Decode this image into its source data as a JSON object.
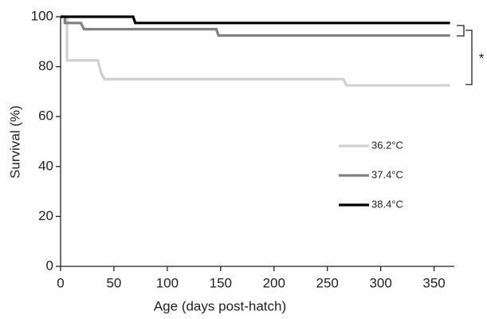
{
  "chart_data": {
    "type": "line",
    "xlabel": "Age (days post-hatch)",
    "ylabel": "Survival (%)",
    "xlim": [
      0,
      369
    ],
    "ylim": [
      0,
      100
    ],
    "xticks": [
      0,
      50,
      100,
      150,
      200,
      250,
      300,
      350
    ],
    "yticks": [
      0,
      20,
      40,
      60,
      80,
      100
    ],
    "grid": false,
    "legend": "right",
    "annotation": "*",
    "series": [
      {
        "name": "36.2°C",
        "color": "#d0d0d0",
        "x": [
          0,
          6,
          6,
          35,
          38,
          41,
          265,
          268,
          365
        ],
        "values": [
          100,
          100,
          82.5,
          82.5,
          77.5,
          75,
          75,
          72.5,
          72.5
        ]
      },
      {
        "name": "37.4°C",
        "color": "#808080",
        "x": [
          0,
          4,
          4,
          19,
          22,
          146,
          148,
          365
        ],
        "values": [
          100,
          100,
          97.5,
          97.5,
          95,
          95,
          92.5,
          92.5
        ]
      },
      {
        "name": "38.4°C",
        "color": "#000000",
        "x": [
          0,
          68,
          70,
          365
        ],
        "values": [
          100,
          100,
          97.5,
          97.5
        ]
      }
    ]
  }
}
